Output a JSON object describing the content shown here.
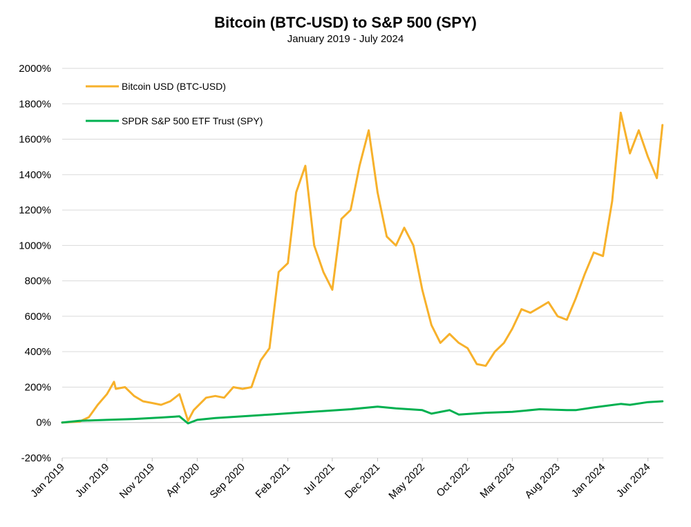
{
  "chart_data": {
    "type": "line",
    "title": "Bitcoin (BTC-USD) to S&P 500 (SPY)",
    "subtitle": "January 2019 - July 2024",
    "xlabel": "",
    "ylabel": "",
    "ylim": [
      -200,
      2000
    ],
    "y_ticks": [
      "-200%",
      "0%",
      "200%",
      "400%",
      "600%",
      "800%",
      "1000%",
      "1200%",
      "1400%",
      "1600%",
      "1800%",
      "2000%"
    ],
    "x_ticks": [
      "Jan 2019",
      "Jun 2019",
      "Nov 2019",
      "Apr 2020",
      "Sep 2020",
      "Feb 2021",
      "Jul 2021",
      "Dec 2021",
      "May 2022",
      "Oct 2022",
      "Mar 2023",
      "Aug 2023",
      "Jan 2024",
      "Jun 2024"
    ],
    "grid": "horizontal",
    "legend": "top-left",
    "series": [
      {
        "name": "Bitcoin USD (BTC-USD)",
        "color": "#F7B12B",
        "points": [
          [
            "2019-01",
            0
          ],
          [
            "2019-03",
            5
          ],
          [
            "2019-04",
            30
          ],
          [
            "2019-05",
            100
          ],
          [
            "2019-06",
            160
          ],
          [
            "2019-06-25",
            230
          ],
          [
            "2019-07",
            190
          ],
          [
            "2019-08",
            200
          ],
          [
            "2019-09",
            150
          ],
          [
            "2019-10",
            120
          ],
          [
            "2019-11",
            110
          ],
          [
            "2019-12",
            100
          ],
          [
            "2020-01",
            120
          ],
          [
            "2020-02",
            160
          ],
          [
            "2020-03",
            10
          ],
          [
            "2020-03-20",
            70
          ],
          [
            "2020-04",
            90
          ],
          [
            "2020-05",
            140
          ],
          [
            "2020-06",
            150
          ],
          [
            "2020-07",
            140
          ],
          [
            "2020-08",
            200
          ],
          [
            "2020-09",
            190
          ],
          [
            "2020-10",
            200
          ],
          [
            "2020-11",
            350
          ],
          [
            "2020-12",
            420
          ],
          [
            "2021-01",
            850
          ],
          [
            "2021-02",
            900
          ],
          [
            "2021-03",
            1300
          ],
          [
            "2021-04",
            1450
          ],
          [
            "2021-05",
            1000
          ],
          [
            "2021-06",
            850
          ],
          [
            "2021-07",
            750
          ],
          [
            "2021-08",
            1150
          ],
          [
            "2021-09",
            1200
          ],
          [
            "2021-10",
            1450
          ],
          [
            "2021-11",
            1650
          ],
          [
            "2021-12",
            1300
          ],
          [
            "2022-01",
            1050
          ],
          [
            "2022-02",
            1000
          ],
          [
            "2022-03",
            1100
          ],
          [
            "2022-04",
            1000
          ],
          [
            "2022-05",
            750
          ],
          [
            "2022-06",
            550
          ],
          [
            "2022-07",
            450
          ],
          [
            "2022-08",
            500
          ],
          [
            "2022-09",
            450
          ],
          [
            "2022-10",
            420
          ],
          [
            "2022-11",
            330
          ],
          [
            "2022-12",
            320
          ],
          [
            "2023-01",
            400
          ],
          [
            "2023-02",
            450
          ],
          [
            "2023-03",
            530
          ],
          [
            "2023-04",
            640
          ],
          [
            "2023-05",
            620
          ],
          [
            "2023-06",
            650
          ],
          [
            "2023-07",
            680
          ],
          [
            "2023-08",
            600
          ],
          [
            "2023-09",
            580
          ],
          [
            "2023-10",
            700
          ],
          [
            "2023-11",
            840
          ],
          [
            "2023-12",
            960
          ],
          [
            "2024-01",
            940
          ],
          [
            "2024-02",
            1250
          ],
          [
            "2024-03",
            1750
          ],
          [
            "2024-04",
            1520
          ],
          [
            "2024-05",
            1650
          ],
          [
            "2024-06",
            1500
          ],
          [
            "2024-07",
            1380
          ],
          [
            "2024-07-20",
            1680
          ]
        ]
      },
      {
        "name": "SPDR S&P 500 ETF Trust (SPY)",
        "color": "#00B050",
        "points": [
          [
            "2019-01",
            0
          ],
          [
            "2019-03",
            10
          ],
          [
            "2019-06",
            15
          ],
          [
            "2019-09",
            20
          ],
          [
            "2019-12",
            28
          ],
          [
            "2020-02",
            35
          ],
          [
            "2020-03",
            -5
          ],
          [
            "2020-04",
            15
          ],
          [
            "2020-06",
            25
          ],
          [
            "2020-09",
            35
          ],
          [
            "2020-12",
            45
          ],
          [
            "2021-03",
            55
          ],
          [
            "2021-06",
            65
          ],
          [
            "2021-09",
            75
          ],
          [
            "2021-12",
            90
          ],
          [
            "2022-02",
            80
          ],
          [
            "2022-05",
            70
          ],
          [
            "2022-06",
            50
          ],
          [
            "2022-08",
            70
          ],
          [
            "2022-09",
            45
          ],
          [
            "2022-12",
            55
          ],
          [
            "2023-03",
            60
          ],
          [
            "2023-06",
            75
          ],
          [
            "2023-09",
            70
          ],
          [
            "2023-10",
            70
          ],
          [
            "2023-12",
            85
          ],
          [
            "2024-03",
            105
          ],
          [
            "2024-04",
            100
          ],
          [
            "2024-06",
            115
          ],
          [
            "2024-07-20",
            120
          ]
        ]
      }
    ]
  }
}
